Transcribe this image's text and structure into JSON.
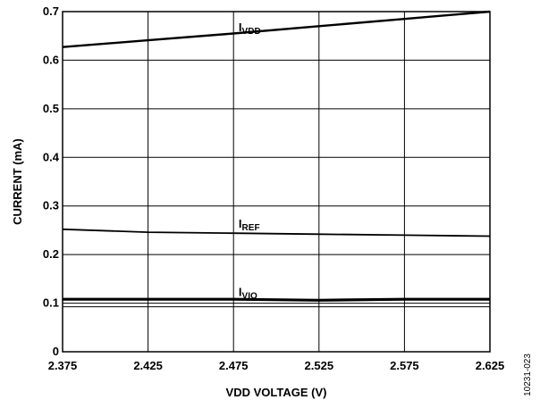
{
  "chart_data": {
    "type": "line",
    "xlabel": "VDD VOLTAGE (V)",
    "ylabel": "CURRENT (mA)",
    "xlim": [
      2.375,
      2.625
    ],
    "ylim": [
      0,
      0.7
    ],
    "x_ticks": [
      "2.375",
      "2.425",
      "2.475",
      "2.525",
      "2.575",
      "2.625"
    ],
    "y_ticks": [
      "0",
      "0.1",
      "0.2",
      "0.3",
      "0.4",
      "0.5",
      "0.6",
      "0.7"
    ],
    "grid": true,
    "series": [
      {
        "name_main": "I",
        "name_sub": "VDD",
        "x": [
          2.375,
          2.425,
          2.475,
          2.525,
          2.575,
          2.625
        ],
        "y": [
          0.627,
          0.641,
          0.655,
          0.67,
          0.685,
          0.7
        ]
      },
      {
        "name_main": "I",
        "name_sub": "REF",
        "x": [
          2.375,
          2.425,
          2.475,
          2.525,
          2.575,
          2.625
        ],
        "y": [
          0.252,
          0.246,
          0.244,
          0.242,
          0.24,
          0.238
        ]
      },
      {
        "name_main": "I",
        "name_sub": "VIO",
        "x": [
          2.375,
          2.425,
          2.475,
          2.525,
          2.575,
          2.625
        ],
        "y": [
          0.108,
          0.108,
          0.108,
          0.106,
          0.108,
          0.108
        ]
      }
    ],
    "label_positions": [
      {
        "x": 2.478,
        "y": 0.66
      },
      {
        "x": 2.478,
        "y": 0.255
      },
      {
        "x": 2.478,
        "y": 0.115
      }
    ],
    "figure_code": "10231-023"
  }
}
